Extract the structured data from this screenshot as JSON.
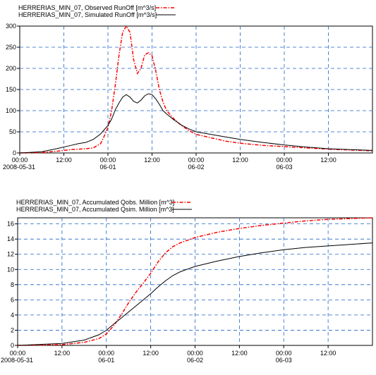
{
  "chart_data": [
    {
      "type": "line",
      "legend_placement": "top-left",
      "grid": true,
      "x_ticks": [
        "00:00",
        "12:00",
        "00:00",
        "12:00",
        "00:00",
        "12:00",
        "00:00",
        "12:00"
      ],
      "date_labels": [
        "2008-05-31",
        "06-01",
        "06-02",
        "06-03"
      ],
      "xlim_hours": [
        0,
        96
      ],
      "ylim": [
        0,
        300
      ],
      "y_ticks": [
        "0",
        "50",
        "100",
        "150",
        "200",
        "250",
        "300"
      ],
      "y_tick_values": [
        0,
        50,
        100,
        150,
        200,
        250,
        300
      ],
      "series": [
        {
          "name": "HERRERIAS_MIN_07, Observed RunOff [m^3/s]",
          "color": "#ff0000",
          "style": "dash-dot",
          "points": [
            [
              0,
              0
            ],
            [
              6,
              1
            ],
            [
              10,
              4
            ],
            [
              14,
              8
            ],
            [
              18,
              10
            ],
            [
              20,
              12
            ],
            [
              22,
              22
            ],
            [
              23,
              40
            ],
            [
              24,
              60
            ],
            [
              25,
              100
            ],
            [
              26,
              160
            ],
            [
              27,
              230
            ],
            [
              28,
              285
            ],
            [
              29,
              300
            ],
            [
              30,
              285
            ],
            [
              31,
              220
            ],
            [
              32,
              188
            ],
            [
              33,
              200
            ],
            [
              34,
              232
            ],
            [
              35,
              237
            ],
            [
              36,
              230
            ],
            [
              37,
              195
            ],
            [
              38,
              150
            ],
            [
              39,
              120
            ],
            [
              40,
              100
            ],
            [
              42,
              80
            ],
            [
              44,
              65
            ],
            [
              46,
              53
            ],
            [
              48,
              44
            ],
            [
              52,
              36
            ],
            [
              56,
              28
            ],
            [
              60,
              23
            ],
            [
              66,
              18
            ],
            [
              72,
              15
            ],
            [
              78,
              12
            ],
            [
              84,
              9
            ],
            [
              90,
              7
            ],
            [
              96,
              5
            ]
          ]
        },
        {
          "name": "HERRERIAS_MIN_07, Simulated RunOff [m^3/s]",
          "color": "#000000",
          "style": "solid",
          "points": [
            [
              0,
              0
            ],
            [
              6,
              3
            ],
            [
              10,
              10
            ],
            [
              14,
              18
            ],
            [
              16,
              22
            ],
            [
              18,
              25
            ],
            [
              20,
              32
            ],
            [
              22,
              45
            ],
            [
              23,
              55
            ],
            [
              24,
              65
            ],
            [
              25,
              80
            ],
            [
              26,
              102
            ],
            [
              27,
              118
            ],
            [
              28,
              132
            ],
            [
              29,
              138
            ],
            [
              30,
              132
            ],
            [
              31,
              122
            ],
            [
              32,
              118
            ],
            [
              33,
              125
            ],
            [
              34,
              135
            ],
            [
              35,
              140
            ],
            [
              36,
              138
            ],
            [
              37,
              128
            ],
            [
              38,
              115
            ],
            [
              39,
              100
            ],
            [
              40,
              92
            ],
            [
              42,
              78
            ],
            [
              44,
              66
            ],
            [
              46,
              57
            ],
            [
              48,
              50
            ],
            [
              52,
              44
            ],
            [
              56,
              38
            ],
            [
              60,
              32
            ],
            [
              66,
              25
            ],
            [
              72,
              19
            ],
            [
              78,
              14
            ],
            [
              84,
              10
            ],
            [
              90,
              8
            ],
            [
              96,
              6
            ]
          ]
        }
      ]
    },
    {
      "type": "line",
      "legend_placement": "top-left",
      "grid": true,
      "x_ticks": [
        "00:00",
        "12:00",
        "00:00",
        "12:00",
        "00:00",
        "12:00",
        "00:00",
        "12:00"
      ],
      "date_labels": [
        "2008-05-31",
        "06-01",
        "06-02",
        "06-03"
      ],
      "xlim_hours": [
        0,
        96
      ],
      "ylim": [
        0,
        16.8
      ],
      "y_ticks": [
        "0",
        "2",
        "4",
        "6",
        "8",
        "10",
        "12",
        "14",
        "16"
      ],
      "y_tick_values": [
        0,
        2,
        4,
        6,
        8,
        10,
        12,
        14,
        16
      ],
      "series": [
        {
          "name": "HERRERIAS_MIN_07, Accumulated Qobs. Million [m^3]",
          "color": "#ff0000",
          "style": "dash-dot",
          "points": [
            [
              0,
              0
            ],
            [
              12,
              0.1
            ],
            [
              18,
              0.4
            ],
            [
              22,
              0.9
            ],
            [
              24,
              1.5
            ],
            [
              26,
              2.6
            ],
            [
              28,
              4
            ],
            [
              30,
              5.6
            ],
            [
              32,
              7
            ],
            [
              34,
              8.2
            ],
            [
              36,
              9.5
            ],
            [
              38,
              11
            ],
            [
              40,
              12.2
            ],
            [
              42,
              13
            ],
            [
              44,
              13.5
            ],
            [
              48,
              14.2
            ],
            [
              54,
              14.9
            ],
            [
              60,
              15.4
            ],
            [
              66,
              15.8
            ],
            [
              72,
              16.1
            ],
            [
              78,
              16.4
            ],
            [
              84,
              16.6
            ],
            [
              90,
              16.7
            ],
            [
              96,
              16.8
            ]
          ]
        },
        {
          "name": "HERRERIAS_MIN_07, Accumulated Qsim. Million [m^3]",
          "color": "#000000",
          "style": "solid",
          "points": [
            [
              0,
              0
            ],
            [
              12,
              0.25
            ],
            [
              18,
              0.7
            ],
            [
              22,
              1.4
            ],
            [
              24,
              2
            ],
            [
              26,
              2.8
            ],
            [
              28,
              3.6
            ],
            [
              30,
              4.4
            ],
            [
              32,
              5.2
            ],
            [
              34,
              6
            ],
            [
              36,
              6.8
            ],
            [
              38,
              7.7
            ],
            [
              40,
              8.5
            ],
            [
              42,
              9.2
            ],
            [
              44,
              9.7
            ],
            [
              48,
              10.4
            ],
            [
              54,
              11.1
            ],
            [
              60,
              11.7
            ],
            [
              66,
              12.2
            ],
            [
              72,
              12.6
            ],
            [
              78,
              12.9
            ],
            [
              84,
              13.1
            ],
            [
              90,
              13.3
            ],
            [
              96,
              13.5
            ]
          ]
        }
      ]
    }
  ]
}
